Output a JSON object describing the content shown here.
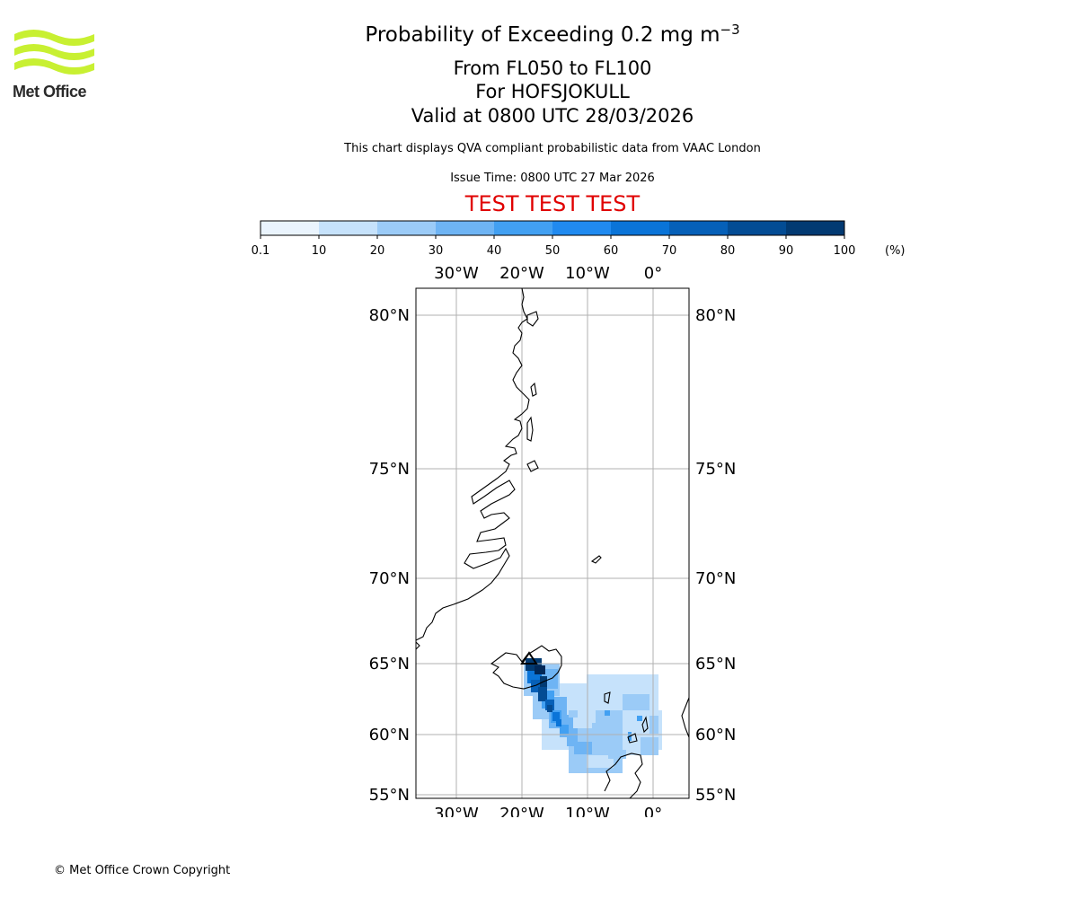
{
  "logo": {
    "text": "Met Office",
    "color": "#c8f032"
  },
  "header": {
    "title_main": "Probability of Exceeding 0.2 mg m",
    "title_exp": "−3",
    "flight_levels": "From FL050 to FL100",
    "volcano": "For HOFSJOKULL",
    "valid_time": "Valid at 0800 UTC 28/03/2026",
    "description": "This chart displays QVA compliant probabilistic data from VAAC London",
    "issue_time": "Issue Time: 0800 UTC 27 Mar 2026",
    "test_banner": "TEST TEST TEST",
    "test_color": "#e00000"
  },
  "colorbar": {
    "ticks": [
      "0.1",
      "10",
      "20",
      "30",
      "40",
      "50",
      "60",
      "70",
      "80",
      "90",
      "100"
    ],
    "unit": "(%)",
    "colors": [
      "#eaf4fd",
      "#c6e2fb",
      "#9bcbf7",
      "#6eb4f4",
      "#42a0f2",
      "#208af0",
      "#0a74d8",
      "#0660b8",
      "#034c94",
      "#023a72",
      "#012858"
    ]
  },
  "map": {
    "lon_labels": [
      "30°W",
      "20°W",
      "10°W",
      "0°"
    ],
    "lon_values": [
      -30,
      -20,
      -10,
      0
    ],
    "lat_labels": [
      "80°N",
      "75°N",
      "70°N",
      "65°N",
      "60°N",
      "55°N"
    ],
    "lat_values": [
      80,
      75,
      70,
      65,
      60,
      55
    ],
    "volcano_marker": "triangle-icon"
  },
  "footer": {
    "copyright": "© Met Office Crown Copyright"
  }
}
